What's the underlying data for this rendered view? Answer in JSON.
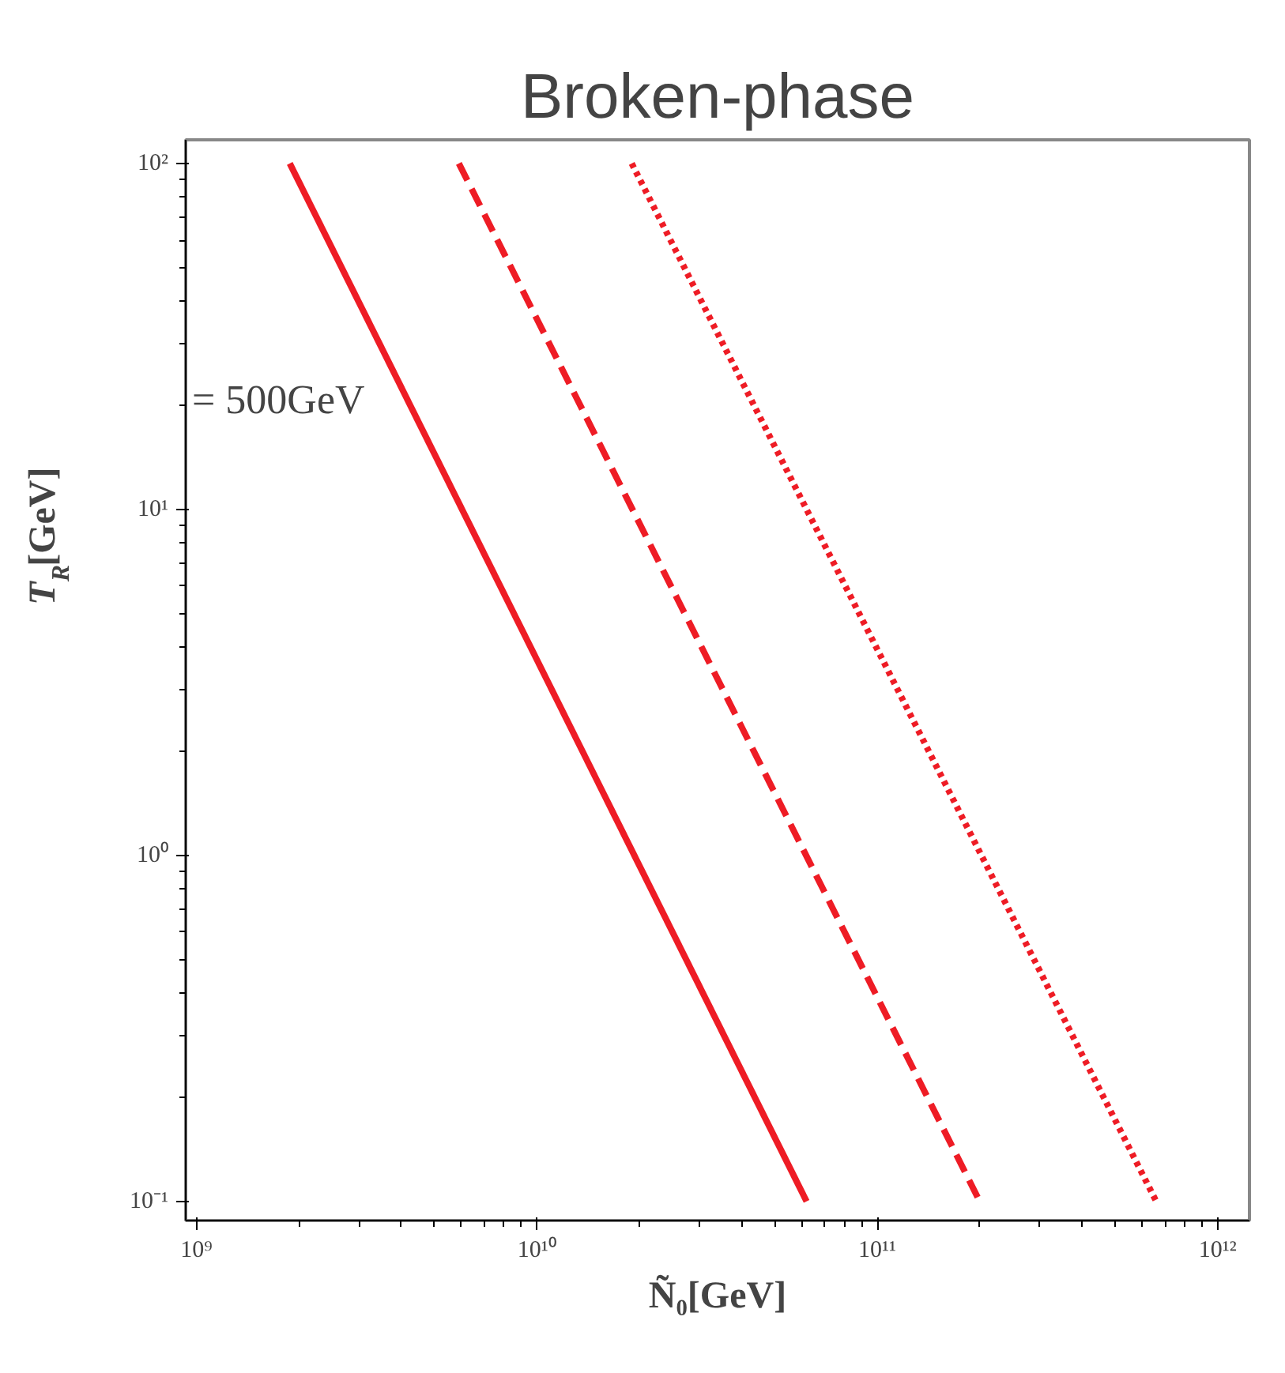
{
  "chart_data": {
    "type": "line",
    "title": "Broken-phase",
    "xlabel": "Ñ₀[GeV]",
    "ylabel": "T$_{R}$[GeV]",
    "annotations": [
      "= 500GeV"
    ],
    "log": "xy",
    "grid": false,
    "marker": "none",
    "xlim": [
      930000000.0,
      1240000000000.0
    ],
    "ylim": [
      0.088,
      117
    ],
    "xticks": [
      {
        "value": 1000000000.0,
        "label": "10⁹"
      },
      {
        "value": 10000000000.0,
        "label": "10¹⁰"
      },
      {
        "value": 100000000000.0,
        "label": "10¹¹"
      },
      {
        "value": 1000000000000.0,
        "label": "10¹²"
      }
    ],
    "yticks": [
      {
        "value": 0.1,
        "label": "10⁻¹"
      },
      {
        "value": 1,
        "label": "10⁰"
      },
      {
        "value": 10,
        "label": "10¹"
      },
      {
        "value": 100,
        "label": "10²"
      }
    ],
    "series": [
      {
        "color": "#ee1c25",
        "line_style": "solid",
        "x": [
          1880000000.0,
          62000000000.0
        ],
        "values": [
          100,
          0.1
        ]
      },
      {
        "color": "#ee1c25",
        "line_style": "dashed",
        "x": [
          5900000000.0,
          200000000000.0
        ],
        "values": [
          100,
          0.1
        ]
      },
      {
        "color": "#ee1c25",
        "line_style": "dotted",
        "x": [
          19000000000.0,
          660000000000.0
        ],
        "values": [
          100,
          0.1
        ]
      }
    ]
  }
}
